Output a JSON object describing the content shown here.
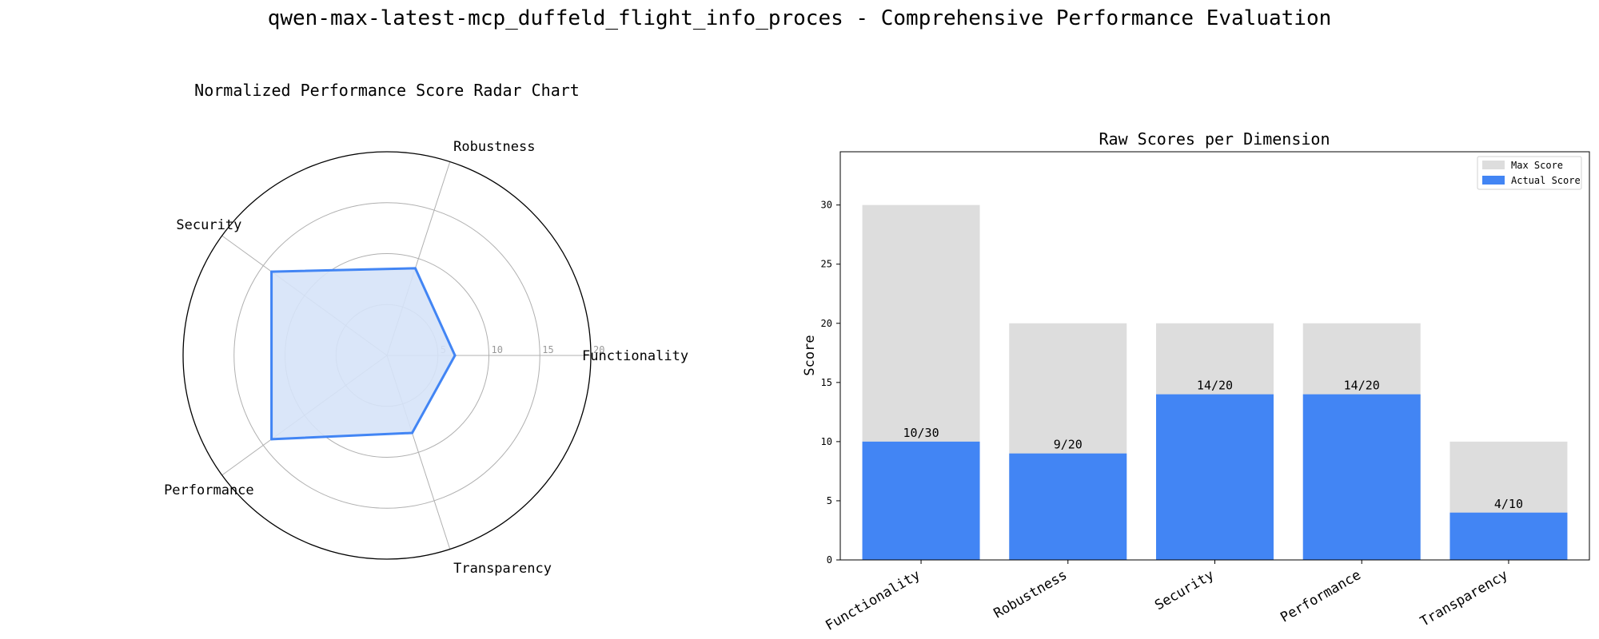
{
  "figure": {
    "title": "qwen-max-latest-mcp_duffeld_flight_info_proces - Comprehensive Performance Evaluation"
  },
  "colors": {
    "actual": "#4285F4",
    "max": "#DDDDDD",
    "radar_line": "#4285F4",
    "radar_fill": "#D6E3F8",
    "grid": "#B0B0B0",
    "tick": "#999999"
  },
  "chart_data": [
    {
      "type": "radar",
      "title": "Normalized Performance Score Radar Chart",
      "axes": [
        "Functionality",
        "Robustness",
        "Security",
        "Performance",
        "Transparency"
      ],
      "values": [
        6.67,
        9,
        14,
        14,
        8
      ],
      "rlim": [
        0,
        20
      ],
      "rticks": [
        "5",
        "10",
        "15",
        "20"
      ],
      "grid": true
    },
    {
      "type": "bar",
      "title": "Raw Scores per Dimension",
      "categories": [
        "Functionality",
        "Robustness",
        "Security",
        "Performance",
        "Transparency"
      ],
      "series": [
        {
          "name": "Max Score",
          "values": [
            30,
            20,
            20,
            20,
            10
          ]
        },
        {
          "name": "Actual Score",
          "values": [
            10,
            9,
            14,
            14,
            4
          ]
        }
      ],
      "data_labels": [
        "10/30",
        "9/20",
        "14/20",
        "14/20",
        "4/10"
      ],
      "xlabel": "",
      "ylabel": "Score",
      "ylim": [
        0,
        34.5
      ],
      "yticks": [
        "0",
        "5",
        "10",
        "15",
        "20",
        "25",
        "30"
      ],
      "legend": {
        "position": "top-right",
        "entries": [
          "Max Score",
          "Actual Score"
        ]
      }
    }
  ]
}
